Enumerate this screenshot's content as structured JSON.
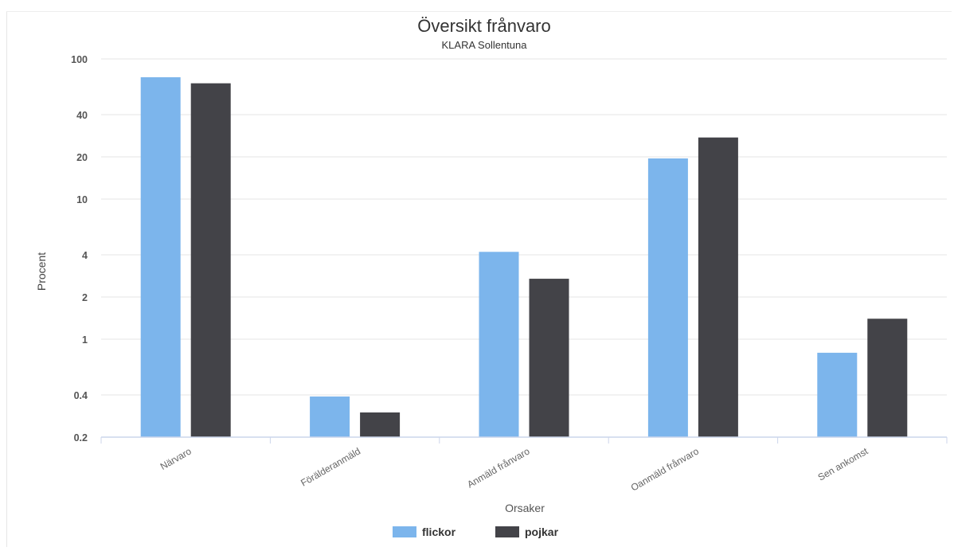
{
  "chart_data": {
    "type": "bar",
    "title": "Översikt frånvaro",
    "subtitle": "KLARA Sollentuna",
    "xlabel": "Orsaker",
    "ylabel": "Procent",
    "yscale": "log",
    "ylim": [
      0.2,
      100
    ],
    "yticks": [
      0.2,
      0.4,
      1,
      2,
      4,
      10,
      20,
      40,
      100
    ],
    "ytick_labels": [
      "0.2",
      "0.4",
      "1",
      "2",
      "4",
      "10",
      "20",
      "40",
      "100"
    ],
    "grid": true,
    "legend_position": "bottom-center",
    "categories": [
      "Närvaro",
      "Förälderanmäld",
      "Anmäld frånvaro",
      "Oanmäld frånvaro",
      "Sen ankomst"
    ],
    "series": [
      {
        "name": "flickor",
        "color": "#7cb5ec",
        "values": [
          74,
          0.39,
          4.2,
          19.5,
          0.8
        ]
      },
      {
        "name": "pojkar",
        "color": "#434348",
        "values": [
          67,
          0.3,
          2.7,
          27.5,
          1.4
        ]
      }
    ]
  }
}
